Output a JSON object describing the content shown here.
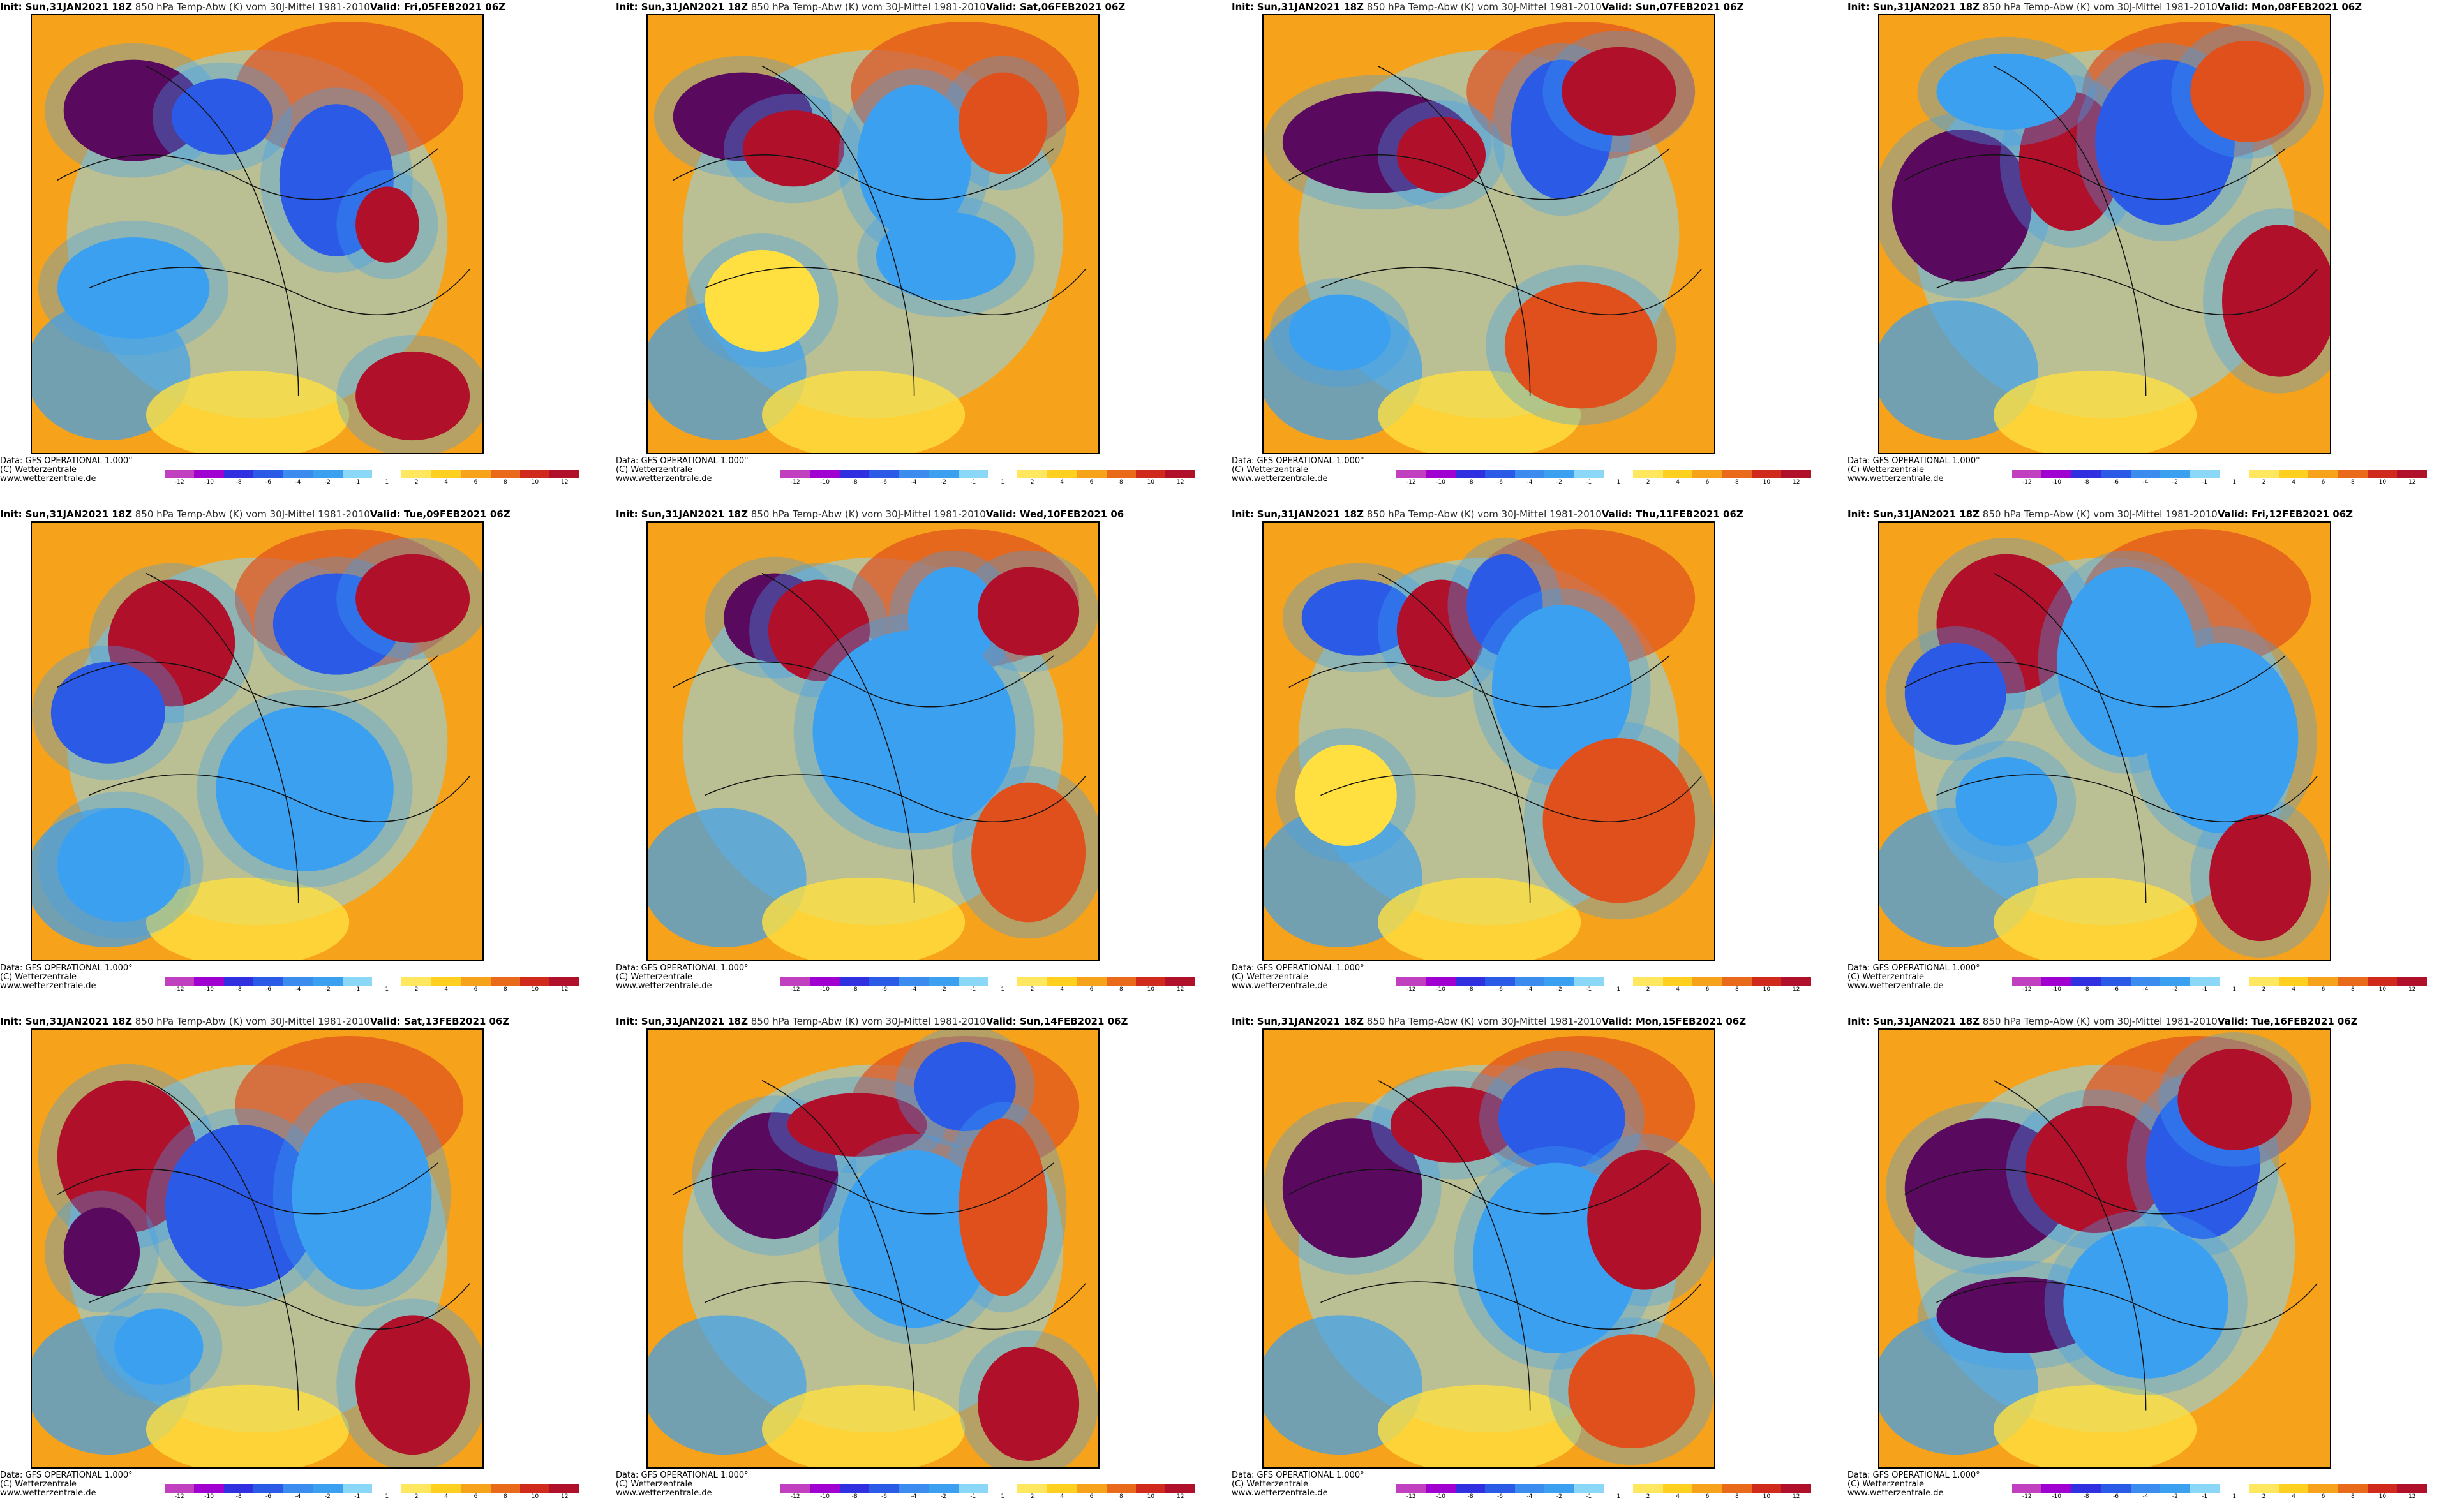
{
  "header": {
    "init": "Init: Sun,31JAN2021 18Z",
    "product": "850 hPa Temp-Abw (K) vom 30J-Mittel 1981-2010"
  },
  "footer": {
    "data": "Data: GFS OPERATIONAL 1.000°",
    "copyright": "(C) Wetterzentrale",
    "url": "www.wetterzentrale.de"
  },
  "scale_ticks": [
    "-12",
    "-10",
    "-8",
    "-6",
    "-4",
    "-2",
    "-1",
    "1",
    "2",
    "4",
    "6",
    "8",
    "10",
    "12"
  ],
  "colors": {
    "extreme_cold": "#5a0a5e",
    "very_cold": "#c000c0",
    "cold": "#2a5ae6",
    "cool": "#3ca0f0",
    "chilly": "#8ad7f8",
    "neutral": "#ffffff",
    "mild": "#ffe040",
    "warm": "#f6a21b",
    "hot": "#e0501c",
    "very_hot": "#b0102a"
  },
  "panels": [
    {
      "valid": "Valid: Fri,05FEB2021 06Z"
    },
    {
      "valid": "Valid: Sat,06FEB2021 06Z"
    },
    {
      "valid": "Valid: Sun,07FEB2021 06Z"
    },
    {
      "valid": "Valid: Mon,08FEB2021 06Z"
    },
    {
      "valid": "Valid: Tue,09FEB2021 06Z"
    },
    {
      "valid": "Valid: Wed,10FEB2021 06"
    },
    {
      "valid": "Valid: Thu,11FEB2021 06Z"
    },
    {
      "valid": "Valid: Fri,12FEB2021 06Z"
    },
    {
      "valid": "Valid: Sat,13FEB2021 06Z"
    },
    {
      "valid": "Valid: Sun,14FEB2021 06Z"
    },
    {
      "valid": "Valid: Mon,15FEB2021 06Z"
    },
    {
      "valid": "Valid: Tue,16FEB2021 06Z"
    }
  ]
}
